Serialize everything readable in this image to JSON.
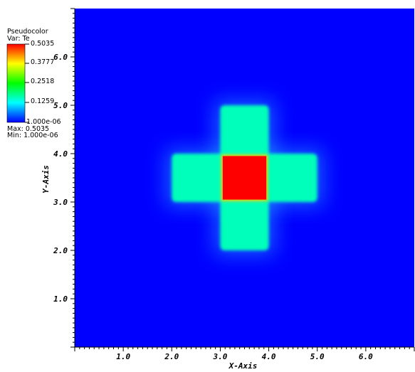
{
  "chart_data": {
    "type": "heatmap",
    "legend": {
      "title": "Pseudocolor",
      "var_label": "Var: Te",
      "ticks": [
        "0.5035",
        "0.3777",
        "0.2518",
        "0.1259",
        "1.000e-06"
      ],
      "max_label": "Max:  0.5035",
      "min_label": "Min:  1.000e-06",
      "colormap": [
        "#ff0000",
        "#ffff00",
        "#00ff00",
        "#00ffff",
        "#0000ff"
      ]
    },
    "xlabel": "X-Axis",
    "ylabel": "Y-Axis",
    "xlim": [
      0,
      7
    ],
    "ylim": [
      0,
      7
    ],
    "x_ticks": [
      "1.0",
      "2.0",
      "3.0",
      "4.0",
      "5.0",
      "6.0"
    ],
    "y_ticks": [
      "1.0",
      "2.0",
      "3.0",
      "4.0",
      "5.0",
      "6.0"
    ],
    "regions": [
      {
        "name": "cross-vertical-arm",
        "x": [
          3.0,
          4.0
        ],
        "y": [
          2.0,
          5.0
        ],
        "value": 0.16
      },
      {
        "name": "cross-horizontal-arm",
        "x": [
          2.0,
          5.0
        ],
        "y": [
          3.0,
          4.0
        ],
        "value": 0.16
      },
      {
        "name": "hot-core",
        "x": [
          3.05,
          3.95
        ],
        "y": [
          3.05,
          3.95
        ],
        "value": 0.5035
      }
    ],
    "background_value": 1e-06
  }
}
